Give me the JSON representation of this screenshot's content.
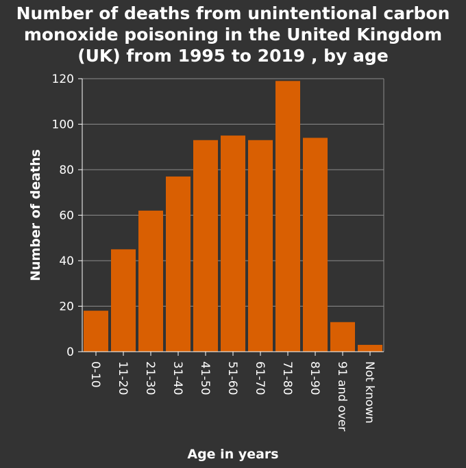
{
  "chart_data": {
    "type": "bar",
    "title_lines": [
      "Number of deaths from unintentional carbon",
      "monoxide poisoning in the United Kingdom",
      "(UK) from 1995 to 2019 , by age"
    ],
    "xlabel": "Age in years",
    "ylabel": "Number of deaths",
    "categories": [
      "0-10",
      "11-20",
      "21-30",
      "31-40",
      "41-50",
      "51-60",
      "61-70",
      "71-80",
      "81-90",
      "91 and over",
      "Not known"
    ],
    "values": [
      18,
      45,
      62,
      77,
      93,
      95,
      93,
      119,
      94,
      13,
      3
    ],
    "ylim": [
      0,
      120
    ],
    "yticks": [
      0,
      20,
      40,
      60,
      80,
      100,
      120
    ],
    "grid": true,
    "legend": "none",
    "colors": {
      "background": "#333333",
      "bar": "#d95f02",
      "grid": "#8c8c8c",
      "axis": "#ffffff",
      "text": "#ffffff"
    }
  }
}
